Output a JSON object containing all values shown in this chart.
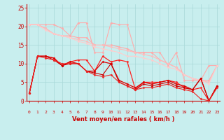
{
  "xlabel": "Vent moyen/en rafales ( km/h )",
  "background_color": "#c8eeee",
  "grid_color": "#a8d8d8",
  "x_ticks": [
    0,
    1,
    2,
    3,
    4,
    5,
    6,
    7,
    8,
    9,
    10,
    11,
    12,
    13,
    14,
    15,
    16,
    17,
    18,
    19,
    20,
    21,
    22,
    23
  ],
  "ylim": [
    0,
    26
  ],
  "xlim": [
    -0.3,
    23.3
  ],
  "yticks": [
    0,
    5,
    10,
    15,
    20,
    25
  ],
  "tick_color": "#cc0000",
  "label_color": "#cc0000",
  "series": [
    {
      "x": [
        0,
        1,
        2,
        3,
        4,
        5,
        6,
        7,
        8,
        9,
        10,
        11,
        12,
        13,
        14,
        15,
        16,
        17,
        18,
        19,
        20,
        21,
        22,
        23
      ],
      "y": [
        20.5,
        20.5,
        20.5,
        20.5,
        19.5,
        17.5,
        21,
        21,
        13,
        13,
        21,
        20.5,
        20.5,
        13,
        13,
        13,
        13,
        9.5,
        13,
        5.5,
        5.5,
        5.5,
        9.5,
        9.5
      ],
      "color": "#ffaaaa",
      "lw": 0.8,
      "marker": "D",
      "ms": 1.5
    },
    {
      "x": [
        0,
        1,
        2,
        3,
        4,
        5,
        6,
        7,
        8,
        9,
        10,
        11,
        12,
        13,
        14,
        15,
        16,
        17,
        18,
        19,
        20,
        21,
        22,
        23
      ],
      "y": [
        20.5,
        20.5,
        19.5,
        18,
        17.5,
        17.5,
        17,
        17,
        15,
        15,
        15,
        14.5,
        14,
        13,
        13,
        13,
        11,
        10,
        9,
        7,
        6,
        5.5,
        5.5,
        9.5
      ],
      "color": "#ffaaaa",
      "lw": 0.8,
      "marker": "D",
      "ms": 1.5
    },
    {
      "x": [
        0,
        1,
        2,
        3,
        4,
        5,
        6,
        7,
        8,
        9,
        10,
        11,
        12,
        13,
        14,
        15,
        16,
        17,
        18,
        19,
        20,
        21,
        22,
        23
      ],
      "y": [
        20.5,
        20.5,
        19.5,
        18,
        17.5,
        17,
        16.5,
        16,
        15,
        15,
        14.5,
        14,
        13.5,
        13,
        12.5,
        12,
        11,
        10,
        9,
        7,
        6,
        5.5,
        5,
        9.5
      ],
      "color": "#ffbbbb",
      "lw": 0.8,
      "marker": "D",
      "ms": 1.5
    },
    {
      "x": [
        0,
        1,
        2,
        3,
        4,
        5,
        6,
        7,
        8,
        9,
        10,
        11,
        12,
        13,
        14,
        15,
        16,
        17,
        18,
        19,
        20,
        21,
        22,
        23
      ],
      "y": [
        20.5,
        20.5,
        19,
        18,
        17.5,
        17,
        16,
        15.5,
        14.5,
        14,
        13.5,
        13,
        12,
        12,
        11.5,
        11,
        10,
        9,
        8.5,
        7,
        6,
        5.5,
        4.5,
        9.5
      ],
      "color": "#ffcccc",
      "lw": 0.8,
      "marker": "D",
      "ms": 1.5
    },
    {
      "x": [
        0,
        1,
        2,
        3,
        4,
        5,
        6,
        7,
        8,
        9,
        10,
        11,
        12,
        13,
        14,
        15,
        16,
        17,
        18,
        19,
        20,
        21,
        22,
        23
      ],
      "y": [
        2,
        12,
        12,
        11.5,
        9.5,
        10.5,
        11,
        11,
        8,
        12,
        10.5,
        11,
        10.5,
        3,
        5,
        5,
        5,
        5.5,
        5,
        3.5,
        3,
        3.5,
        0,
        4
      ],
      "color": "#ff2222",
      "lw": 0.9,
      "marker": "D",
      "ms": 1.5
    },
    {
      "x": [
        0,
        1,
        2,
        3,
        4,
        5,
        6,
        7,
        8,
        9,
        10,
        11,
        12,
        13,
        14,
        15,
        16,
        17,
        18,
        19,
        20,
        21,
        22,
        23
      ],
      "y": [
        2,
        12,
        12,
        11.5,
        9.5,
        10.5,
        10,
        8,
        8,
        10.5,
        10,
        5.5,
        4.5,
        3.5,
        5,
        4.5,
        5,
        5.5,
        4.5,
        4,
        3,
        6,
        0,
        4
      ],
      "color": "#dd0000",
      "lw": 0.9,
      "marker": "D",
      "ms": 1.5
    },
    {
      "x": [
        0,
        1,
        2,
        3,
        4,
        5,
        6,
        7,
        8,
        9,
        10,
        11,
        12,
        13,
        14,
        15,
        16,
        17,
        18,
        19,
        20,
        21,
        22,
        23
      ],
      "y": [
        2,
        12,
        12,
        11,
        9.5,
        10,
        10,
        8,
        7.5,
        7,
        10,
        5,
        4,
        3,
        4.5,
        4,
        4.5,
        5,
        4,
        3.5,
        3,
        6,
        0,
        4
      ],
      "color": "#cc0000",
      "lw": 0.8,
      "marker": "D",
      "ms": 1.5
    },
    {
      "x": [
        0,
        1,
        2,
        3,
        4,
        5,
        6,
        7,
        8,
        9,
        10,
        11,
        12,
        13,
        14,
        15,
        16,
        17,
        18,
        19,
        20,
        21,
        22,
        23
      ],
      "y": [
        2,
        12,
        11.5,
        11,
        10,
        10,
        10,
        8,
        7,
        6.5,
        7,
        5,
        4,
        3,
        3.5,
        3.5,
        4,
        4.5,
        3.5,
        3,
        2.5,
        0.5,
        0,
        3.5
      ],
      "color": "#ee2222",
      "lw": 0.8,
      "marker": "D",
      "ms": 1.5
    }
  ],
  "arrows": [
    "↗",
    "↑",
    "↑",
    "↑",
    "↑",
    "↗",
    "↗",
    "↑",
    "↗",
    "↑",
    "←",
    "↖",
    "↖",
    "↖",
    "↖",
    "↖",
    "↖",
    ">",
    "→",
    "→",
    "→",
    "↖",
    ">",
    "↖"
  ]
}
